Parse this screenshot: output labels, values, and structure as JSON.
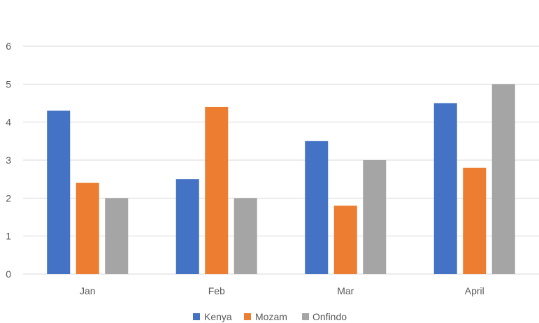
{
  "chart_data": {
    "type": "bar",
    "categories": [
      "Jan",
      "Feb",
      "Mar",
      "April"
    ],
    "series": [
      {
        "name": "Kenya",
        "color": "#4472C4",
        "values": [
          4.3,
          2.5,
          3.5,
          4.5
        ]
      },
      {
        "name": "Mozam",
        "color": "#ED7D31",
        "values": [
          2.4,
          4.4,
          1.8,
          2.8
        ]
      },
      {
        "name": "Onfindo",
        "color": "#A5A5A5",
        "values": [
          2,
          2,
          3,
          5
        ]
      }
    ],
    "ylim": [
      0,
      6
    ],
    "yticks": [
      "0",
      "1",
      "2",
      "3",
      "4",
      "5",
      "6"
    ],
    "grid": true,
    "legend": "bottom",
    "gridColor": "#D9D9D9"
  }
}
